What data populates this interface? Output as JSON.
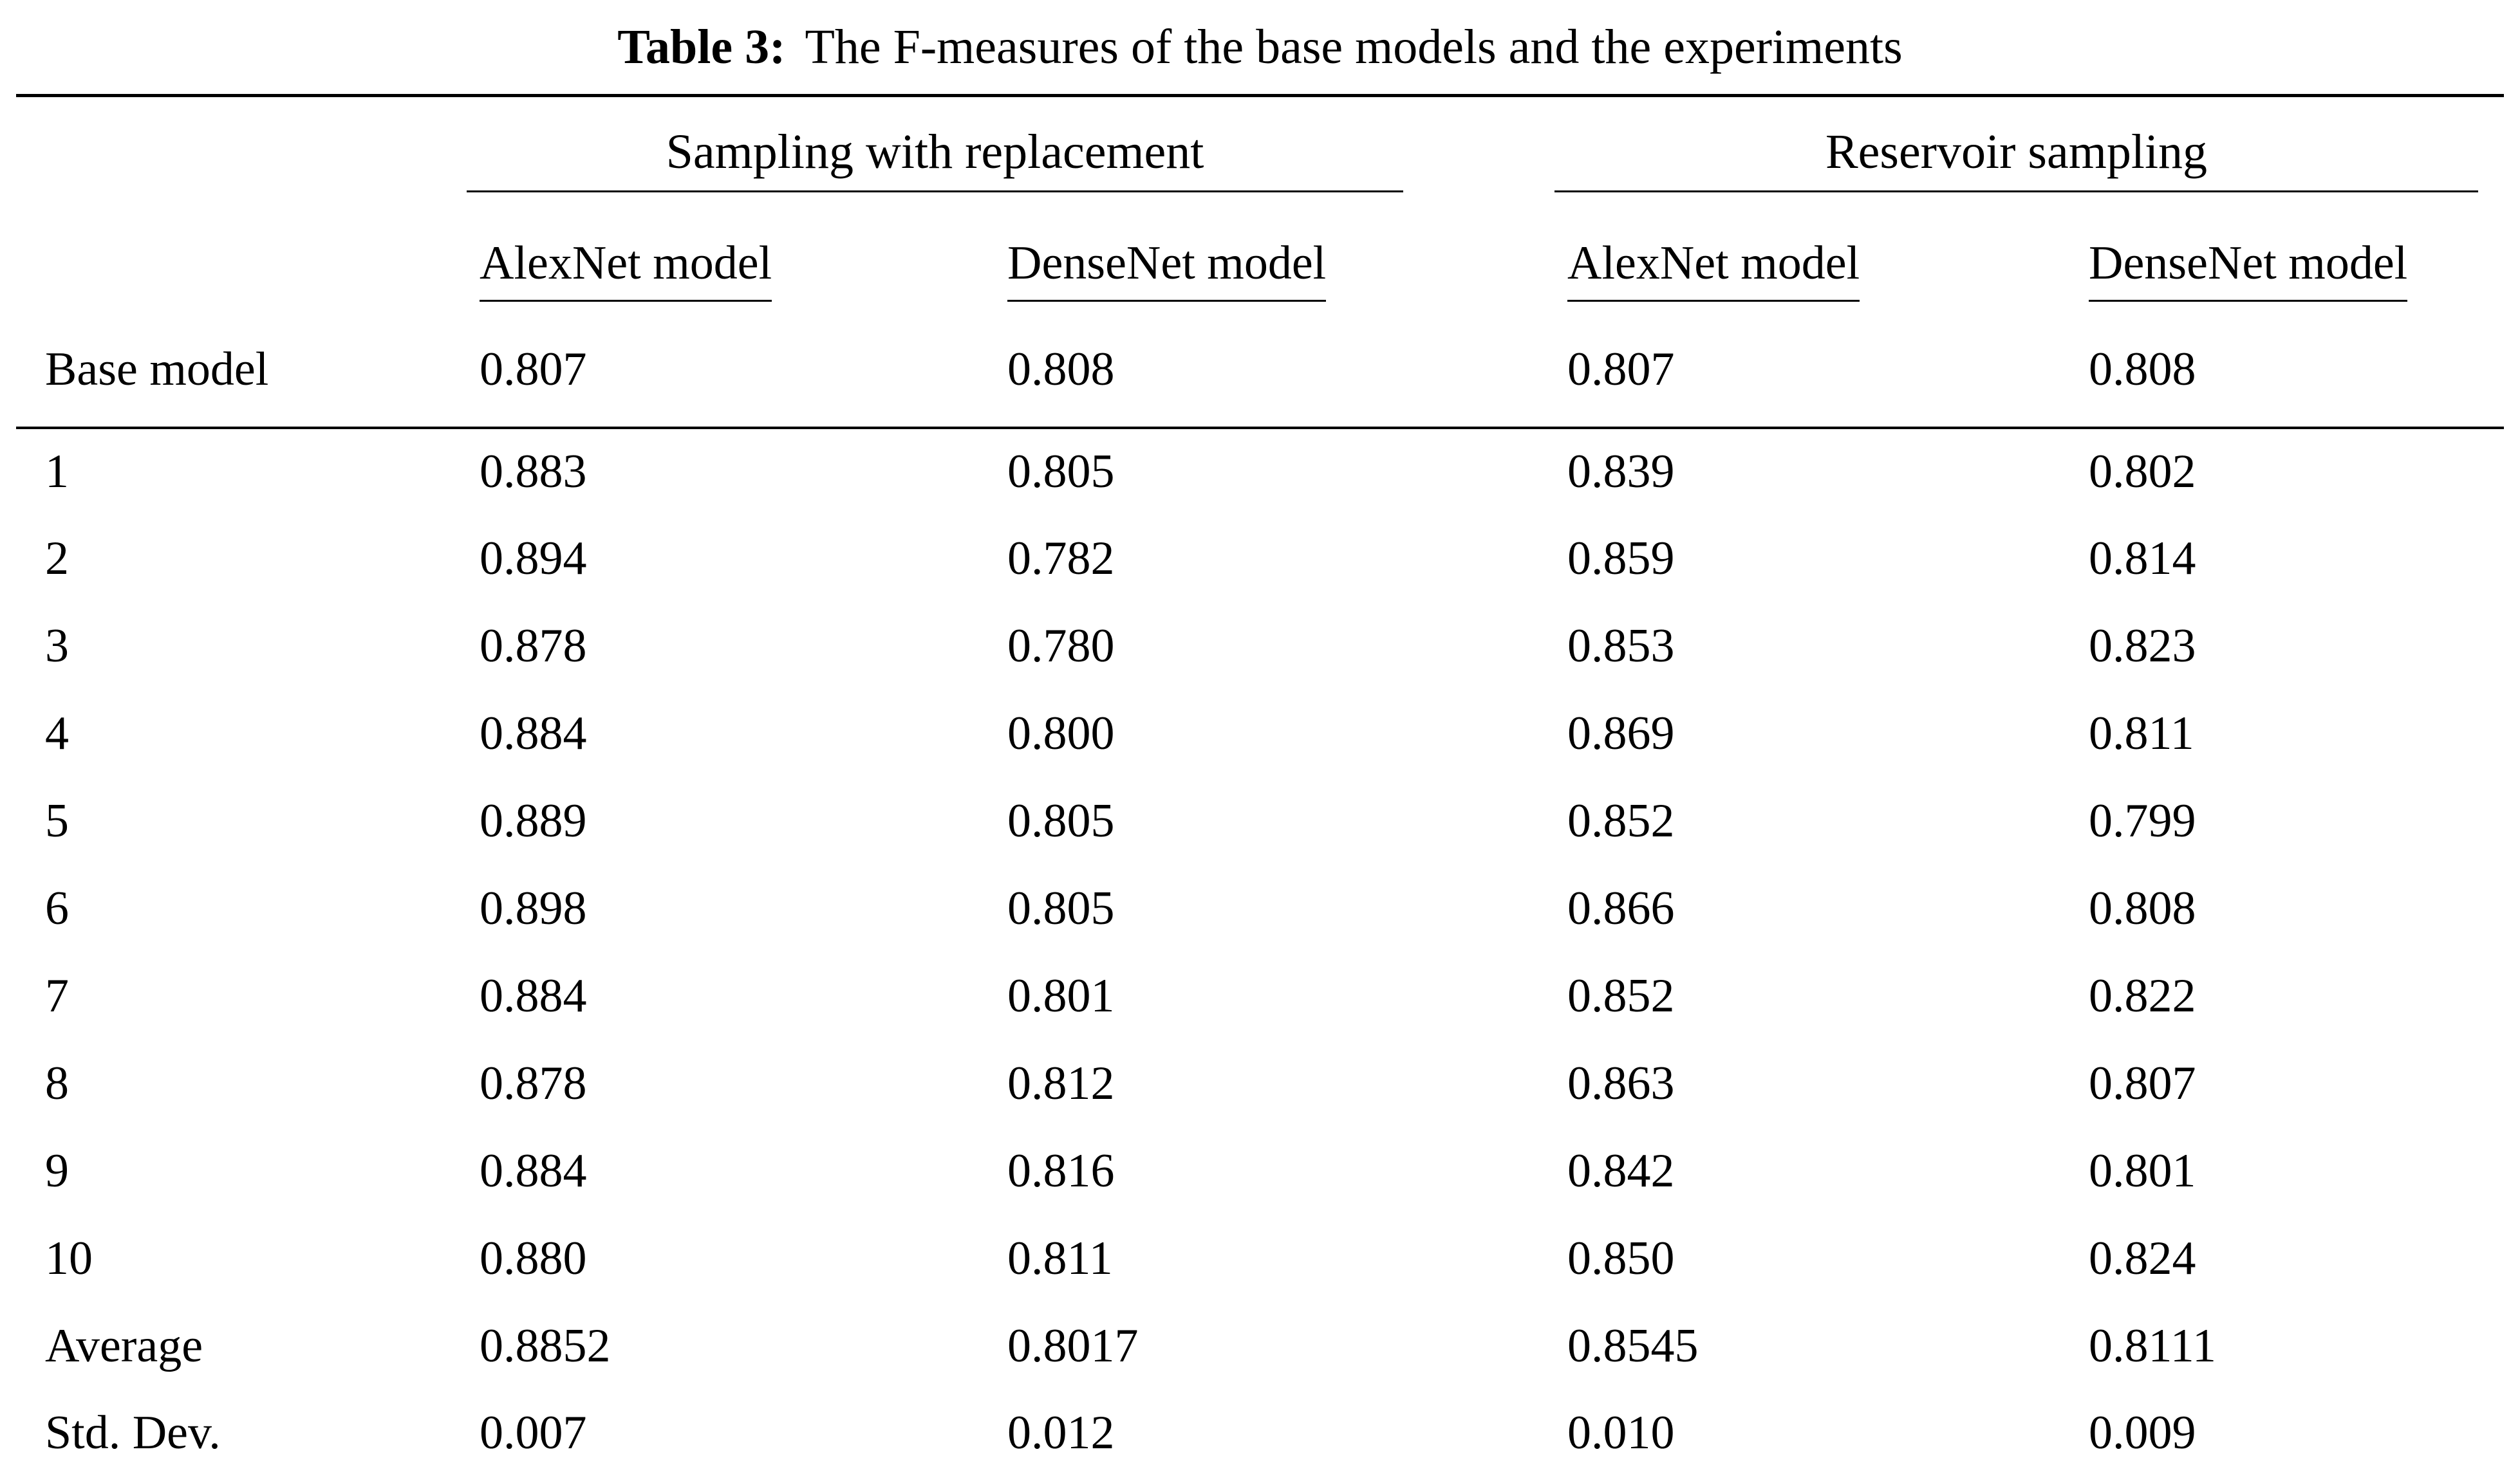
{
  "caption": {
    "label": "Table 3:",
    "text": "The F-measures of the base models and the experiments"
  },
  "table": {
    "group_headers": [
      "Sampling with replacement",
      "Reservoir sampling"
    ],
    "sub_headers": [
      "AlexNet model",
      "DenseNet model",
      "AlexNet model",
      "DenseNet model"
    ],
    "rows": [
      {
        "label": "Base model",
        "values": [
          "0.807",
          "0.808",
          "0.807",
          "0.808"
        ]
      },
      {
        "label": "1",
        "values": [
          "0.883",
          "0.805",
          "0.839",
          "0.802"
        ]
      },
      {
        "label": "2",
        "values": [
          "0.894",
          "0.782",
          "0.859",
          "0.814"
        ]
      },
      {
        "label": "3",
        "values": [
          "0.878",
          "0.780",
          "0.853",
          "0.823"
        ]
      },
      {
        "label": "4",
        "values": [
          "0.884",
          "0.800",
          "0.869",
          "0.811"
        ]
      },
      {
        "label": "5",
        "values": [
          "0.889",
          "0.805",
          "0.852",
          "0.799"
        ]
      },
      {
        "label": "6",
        "values": [
          "0.898",
          "0.805",
          "0.866",
          "0.808"
        ]
      },
      {
        "label": "7",
        "values": [
          "0.884",
          "0.801",
          "0.852",
          "0.822"
        ]
      },
      {
        "label": "8",
        "values": [
          "0.878",
          "0.812",
          "0.863",
          "0.807"
        ]
      },
      {
        "label": "9",
        "values": [
          "0.884",
          "0.816",
          "0.842",
          "0.801"
        ]
      },
      {
        "label": "10",
        "values": [
          "0.880",
          "0.811",
          "0.850",
          "0.824"
        ]
      },
      {
        "label": "Average",
        "values": [
          "0.8852",
          "0.8017",
          "0.8545",
          "0.8111"
        ]
      },
      {
        "label": "Std. Dev.",
        "values": [
          "0.007",
          "0.012",
          "0.010",
          "0.009"
        ]
      }
    ]
  }
}
